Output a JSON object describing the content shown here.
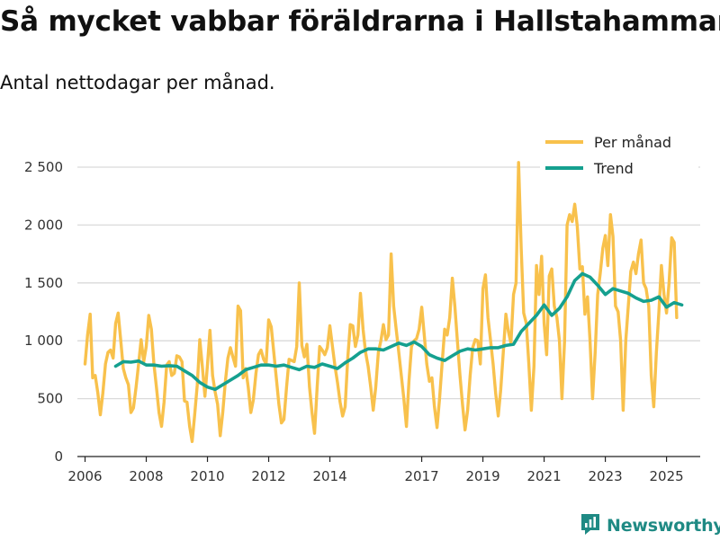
{
  "title": "Så mycket vabbar föräldrarna i Hallstahammar",
  "subtitle": "Antal nettodagar per månad.",
  "brand": {
    "name": "Newsworthy",
    "icon": "newsworthy-logo-icon",
    "color": "#1f8a84"
  },
  "colors": {
    "per_month": "#F8C14C",
    "trend": "#15A08F",
    "grid": "#DADADA",
    "axis": "#222222"
  },
  "chart_data": {
    "type": "line",
    "title": "Så mycket vabbar föräldrarna i Hallstahammar",
    "subtitle": "Antal nettodagar per månad.",
    "xlabel": "",
    "ylabel": "",
    "xlim": [
      2005.75,
      2026.1
    ],
    "ylim": [
      0,
      2500
    ],
    "yticks": [
      0,
      500,
      1000,
      1500,
      2000,
      2500
    ],
    "ytick_labels": [
      "0",
      "500",
      "1 000",
      "1 500",
      "2 000",
      "2 500"
    ],
    "xticks": [
      2006,
      2008,
      2010,
      2012,
      2014,
      2017,
      2019,
      2021,
      2023,
      2025
    ],
    "xtick_labels": [
      "2006",
      "2008",
      "2010",
      "2012",
      "2014",
      "2017",
      "2019",
      "2021",
      "2023",
      "2025"
    ],
    "grid": true,
    "legend_position": "top-right",
    "series": [
      {
        "name": "Per månad",
        "x": [
          2006.0,
          2006.083,
          2006.167,
          2006.25,
          2006.333,
          2006.417,
          2006.5,
          2006.583,
          2006.667,
          2006.75,
          2006.833,
          2006.917,
          2007.0,
          2007.083,
          2007.167,
          2007.25,
          2007.333,
          2007.417,
          2007.5,
          2007.583,
          2007.667,
          2007.75,
          2007.833,
          2007.917,
          2008.0,
          2008.083,
          2008.167,
          2008.25,
          2008.333,
          2008.417,
          2008.5,
          2008.583,
          2008.667,
          2008.75,
          2008.833,
          2008.917,
          2009.0,
          2009.083,
          2009.167,
          2009.25,
          2009.333,
          2009.417,
          2009.5,
          2009.583,
          2009.667,
          2009.75,
          2009.833,
          2009.917,
          2010.0,
          2010.083,
          2010.167,
          2010.25,
          2010.333,
          2010.417,
          2010.5,
          2010.583,
          2010.667,
          2010.75,
          2010.833,
          2010.917,
          2011.0,
          2011.083,
          2011.167,
          2011.25,
          2011.333,
          2011.417,
          2011.5,
          2011.583,
          2011.667,
          2011.75,
          2011.833,
          2011.917,
          2012.0,
          2012.083,
          2012.167,
          2012.25,
          2012.333,
          2012.417,
          2012.5,
          2012.583,
          2012.667,
          2012.75,
          2012.833,
          2012.917,
          2013.0,
          2013.083,
          2013.167,
          2013.25,
          2013.333,
          2013.417,
          2013.5,
          2013.583,
          2013.667,
          2013.75,
          2013.833,
          2013.917,
          2014.0,
          2014.083,
          2014.167,
          2014.25,
          2014.333,
          2014.417,
          2014.5,
          2014.583,
          2014.667,
          2014.75,
          2014.833,
          2014.917,
          2015.0,
          2015.083,
          2015.167,
          2015.25,
          2015.333,
          2015.417,
          2015.5,
          2015.583,
          2015.667,
          2015.75,
          2015.833,
          2015.917,
          2016.0,
          2016.083,
          2016.167,
          2016.25,
          2016.333,
          2016.417,
          2016.5,
          2016.583,
          2016.667,
          2016.75,
          2016.833,
          2016.917,
          2017.0,
          2017.083,
          2017.167,
          2017.25,
          2017.333,
          2017.417,
          2017.5,
          2017.583,
          2017.667,
          2017.75,
          2017.833,
          2017.917,
          2018.0,
          2018.083,
          2018.167,
          2018.25,
          2018.333,
          2018.417,
          2018.5,
          2018.583,
          2018.667,
          2018.75,
          2018.833,
          2018.917,
          2019.0,
          2019.083,
          2019.167,
          2019.25,
          2019.333,
          2019.417,
          2019.5,
          2019.583,
          2019.667,
          2019.75,
          2019.833,
          2019.917,
          2020.0,
          2020.083,
          2020.167,
          2020.25,
          2020.333,
          2020.417,
          2020.5,
          2020.583,
          2020.667,
          2020.75,
          2020.833,
          2020.917,
          2021.0,
          2021.083,
          2021.167,
          2021.25,
          2021.333,
          2021.417,
          2021.5,
          2021.583,
          2021.667,
          2021.75,
          2021.833,
          2021.917,
          2022.0,
          2022.083,
          2022.167,
          2022.25,
          2022.333,
          2022.417,
          2022.5,
          2022.583,
          2022.667,
          2022.75,
          2022.833,
          2022.917,
          2023.0,
          2023.083,
          2023.167,
          2023.25,
          2023.333,
          2023.417,
          2023.5,
          2023.583,
          2023.667,
          2023.75,
          2023.833,
          2023.917,
          2024.0,
          2024.083,
          2024.167,
          2024.25,
          2024.333,
          2024.417,
          2024.5,
          2024.583,
          2024.667,
          2024.75,
          2024.833,
          2024.917,
          2025.0,
          2025.083,
          2025.167,
          2025.25,
          2025.333
        ],
        "values": [
          800,
          1050,
          1230,
          680,
          700,
          550,
          360,
          550,
          800,
          900,
          920,
          850,
          1150,
          1240,
          1000,
          760,
          680,
          620,
          380,
          420,
          600,
          800,
          1010,
          820,
          950,
          1220,
          1100,
          800,
          600,
          380,
          260,
          470,
          790,
          820,
          700,
          720,
          870,
          860,
          820,
          480,
          470,
          260,
          130,
          360,
          620,
          1010,
          780,
          520,
          790,
          1090,
          700,
          560,
          450,
          180,
          380,
          640,
          850,
          940,
          860,
          780,
          1300,
          1260,
          680,
          760,
          600,
          380,
          490,
          720,
          880,
          920,
          840,
          800,
          1180,
          1120,
          900,
          680,
          450,
          290,
          320,
          600,
          840,
          830,
          820,
          950,
          1500,
          960,
          860,
          970,
          600,
          380,
          200,
          600,
          950,
          920,
          880,
          940,
          1130,
          950,
          780,
          640,
          470,
          350,
          430,
          850,
          1140,
          1130,
          950,
          1050,
          1410,
          1100,
          900,
          780,
          600,
          400,
          600,
          900,
          1000,
          1140,
          1010,
          1050,
          1750,
          1300,
          1100,
          900,
          700,
          500,
          260,
          650,
          950,
          1000,
          1020,
          1100,
          1290,
          1050,
          800,
          650,
          680,
          430,
          250,
          500,
          800,
          1100,
          1050,
          1200,
          1540,
          1300,
          1000,
          700,
          450,
          230,
          400,
          700,
          940,
          1010,
          1000,
          800,
          1450,
          1570,
          1200,
          1000,
          800,
          550,
          350,
          580,
          900,
          1230,
          1080,
          980,
          1400,
          1500,
          2540,
          1800,
          1240,
          1150,
          800,
          400,
          780,
          1650,
          1400,
          1730,
          1150,
          880,
          1560,
          1620,
          1300,
          1200,
          1000,
          500,
          1000,
          2000,
          2090,
          2030,
          2180,
          1990,
          1620,
          1640,
          1230,
          1380,
          1000,
          500,
          900,
          1400,
          1580,
          1800,
          1910,
          1650,
          2090,
          1900,
          1300,
          1250,
          1000,
          400,
          1000,
          1300,
          1600,
          1680,
          1580,
          1750,
          1870,
          1500,
          1450,
          1300,
          700,
          430,
          900,
          1250,
          1650,
          1400,
          1240,
          1500,
          1890,
          1850,
          1200
        ]
      },
      {
        "name": "Trend",
        "x": [
          2007.0,
          2007.25,
          2007.5,
          2007.75,
          2008.0,
          2008.25,
          2008.5,
          2008.75,
          2009.0,
          2009.25,
          2009.5,
          2009.75,
          2010.0,
          2010.25,
          2010.5,
          2010.75,
          2011.0,
          2011.25,
          2011.5,
          2011.75,
          2012.0,
          2012.25,
          2012.5,
          2012.75,
          2013.0,
          2013.25,
          2013.5,
          2013.75,
          2014.0,
          2014.25,
          2014.5,
          2014.75,
          2015.0,
          2015.25,
          2015.5,
          2015.75,
          2016.0,
          2016.25,
          2016.5,
          2016.75,
          2017.0,
          2017.25,
          2017.5,
          2017.75,
          2018.0,
          2018.25,
          2018.5,
          2018.75,
          2019.0,
          2019.25,
          2019.5,
          2019.75,
          2020.0,
          2020.25,
          2020.5,
          2020.75,
          2021.0,
          2021.25,
          2021.5,
          2021.75,
          2022.0,
          2022.25,
          2022.5,
          2022.75,
          2023.0,
          2023.25,
          2023.5,
          2023.75,
          2024.0,
          2024.25,
          2024.5,
          2024.75,
          2025.0,
          2025.25,
          2025.5
        ],
        "values": [
          780,
          820,
          815,
          825,
          790,
          790,
          780,
          785,
          780,
          740,
          700,
          640,
          600,
          580,
          620,
          660,
          700,
          750,
          770,
          790,
          790,
          780,
          790,
          770,
          750,
          780,
          770,
          800,
          780,
          760,
          810,
          850,
          900,
          930,
          930,
          920,
          950,
          980,
          960,
          990,
          950,
          880,
          850,
          830,
          870,
          910,
          930,
          920,
          930,
          940,
          940,
          960,
          970,
          1080,
          1150,
          1220,
          1310,
          1220,
          1280,
          1380,
          1520,
          1580,
          1550,
          1480,
          1400,
          1450,
          1430,
          1410,
          1370,
          1340,
          1350,
          1380,
          1290,
          1330,
          1310
        ]
      }
    ]
  }
}
